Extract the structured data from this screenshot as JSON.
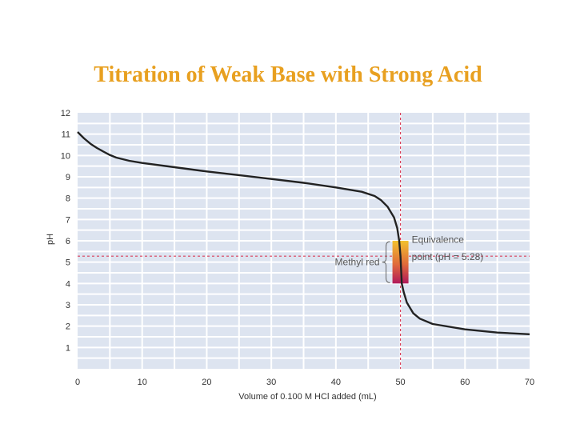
{
  "title": "Titration of Weak Base with Strong Acid",
  "colors": {
    "title": "#e8a020",
    "plot_bg": "#dde4f0",
    "grid": "#ffffff",
    "curve": "#222222",
    "dashed": "#d9405a",
    "indicator_top": "#f2c12e",
    "indicator_bottom": "#b0185a"
  },
  "chart_data": {
    "type": "line",
    "xlabel": "Volume of 0.100 M HCl added (mL)",
    "ylabel": "pH",
    "xlim": [
      0,
      70
    ],
    "ylim": [
      0,
      12
    ],
    "x_ticks": [
      0,
      10,
      20,
      30,
      40,
      50,
      60,
      70
    ],
    "y_ticks": [
      1,
      2,
      3,
      4,
      5,
      6,
      7,
      8,
      9,
      10,
      11,
      12
    ],
    "series": [
      {
        "name": "Titration curve",
        "x": [
          0,
          1,
          2,
          3,
          4,
          5,
          6,
          8,
          10,
          15,
          20,
          25,
          30,
          35,
          40,
          44,
          46,
          47,
          48,
          49,
          49.5,
          49.8,
          50,
          50.2,
          50.5,
          51,
          52,
          53,
          55,
          60,
          65,
          70
        ],
        "y": [
          11.1,
          10.8,
          10.55,
          10.35,
          10.18,
          10.02,
          9.9,
          9.75,
          9.65,
          9.45,
          9.25,
          9.08,
          8.9,
          8.72,
          8.5,
          8.3,
          8.1,
          7.9,
          7.6,
          7.1,
          6.6,
          6.0,
          5.28,
          4.0,
          3.6,
          3.1,
          2.6,
          2.35,
          2.1,
          1.85,
          1.7,
          1.62
        ]
      }
    ],
    "equivalence_point": {
      "x": 50,
      "ph": 5.28
    },
    "indicator_range": {
      "name": "Methyl red",
      "ph_low": 4.0,
      "ph_high": 6.0
    },
    "annotations": {
      "indicator_label": "Methyl red",
      "equivalence_line1": "Equivalence",
      "equivalence_line2": "point (pH = 5.28)"
    }
  }
}
